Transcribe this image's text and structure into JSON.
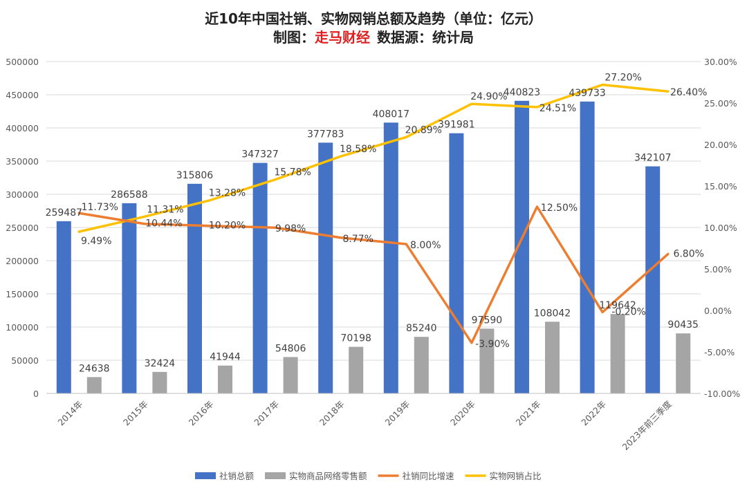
{
  "header": {
    "title": "近10年中国社销、实物网销总额及趋势（单位：亿元）",
    "subtitle_prefix": "制图：",
    "subtitle_brand": "走马财经",
    "subtitle_suffix": "数据源：统计局"
  },
  "colors": {
    "social_bar": "#4472C4",
    "online_bar": "#A5A5A5",
    "growth_line": "#ED7D31",
    "share_line": "#FFC000",
    "brand_red": "#E02020",
    "grid": "#D9D9D9",
    "text": "#595959"
  },
  "chart_data": {
    "type": "bar",
    "categories": [
      "2014年",
      "2015年",
      "2016年",
      "2017年",
      "2018年",
      "2019年",
      "2020年",
      "2021年",
      "2022年",
      "2023年前三季度"
    ],
    "series": [
      {
        "name": "社销总额",
        "kind": "bar",
        "axis": "left",
        "values": [
          259487,
          286588,
          315806,
          347327,
          377783,
          408017,
          391981,
          440823,
          439733,
          342107
        ],
        "labels": [
          "259487",
          "286588",
          "315806",
          "347327",
          "377783",
          "408017",
          "391981",
          "440823",
          "439733",
          "342107"
        ]
      },
      {
        "name": "实物商品网络零售额",
        "kind": "bar",
        "axis": "left",
        "values": [
          24638,
          32424,
          41944,
          54806,
          70198,
          85240,
          97590,
          108042,
          119642,
          90435
        ],
        "labels": [
          "24638",
          "32424",
          "41944",
          "54806",
          "70198",
          "85240",
          "97590",
          "108042",
          "119642",
          "90435"
        ]
      },
      {
        "name": "社销同比增速",
        "kind": "line",
        "axis": "right",
        "values": [
          11.73,
          10.44,
          10.2,
          9.98,
          8.77,
          8.0,
          -3.9,
          12.5,
          -0.2,
          6.8
        ],
        "labels": [
          "11.73%",
          "10.44%",
          "10.20%",
          "9.98%",
          "8.77%",
          "8.00%",
          "-3.90%",
          "12.50%",
          "-0.20%",
          "6.80%"
        ]
      },
      {
        "name": "实物网销占比",
        "kind": "line",
        "axis": "right",
        "values": [
          9.49,
          11.31,
          13.28,
          15.78,
          18.58,
          20.89,
          24.9,
          24.51,
          27.2,
          26.4
        ],
        "labels": [
          "9.49%",
          "11.31%",
          "13.28%",
          "15.78%",
          "18.58%",
          "20.89%",
          "24.90%",
          "24.51%",
          "27.20%",
          "26.40%"
        ]
      }
    ],
    "left_axis": {
      "min": 0,
      "max": 500000,
      "step": 50000,
      "ticks": [
        "0",
        "50000",
        "100000",
        "150000",
        "200000",
        "250000",
        "300000",
        "350000",
        "400000",
        "450000",
        "500000"
      ]
    },
    "right_axis": {
      "min": -10,
      "max": 30,
      "step": 5,
      "ticks": [
        "-10.00%",
        "-5.00%",
        "0.00%",
        "5.00%",
        "10.00%",
        "15.00%",
        "20.00%",
        "25.00%",
        "30.00%"
      ]
    },
    "grid": true,
    "legend_position": "bottom"
  }
}
